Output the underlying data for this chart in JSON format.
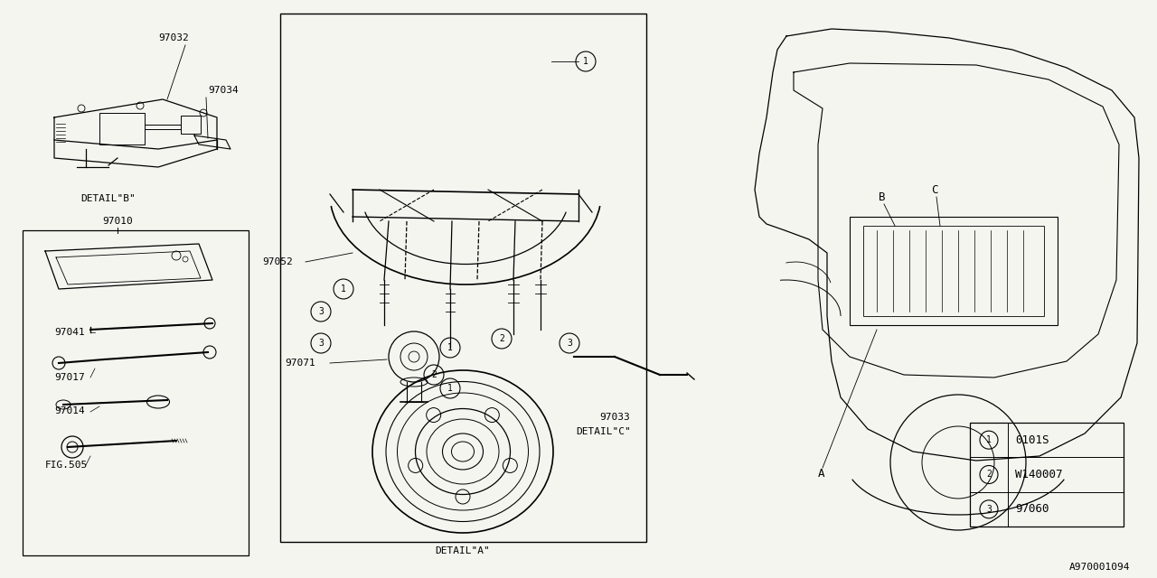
{
  "bg_color": "#f5f5f0",
  "line_color": "#000000",
  "font_color": "#000000",
  "diagram_number": "A970001094",
  "legend": [
    {
      "symbol": "1",
      "code": "0101S"
    },
    {
      "symbol": "2",
      "code": "W140007"
    },
    {
      "symbol": "3",
      "code": "97060"
    }
  ],
  "fig_w": 12.8,
  "fig_h": 6.4,
  "dpi": 100
}
